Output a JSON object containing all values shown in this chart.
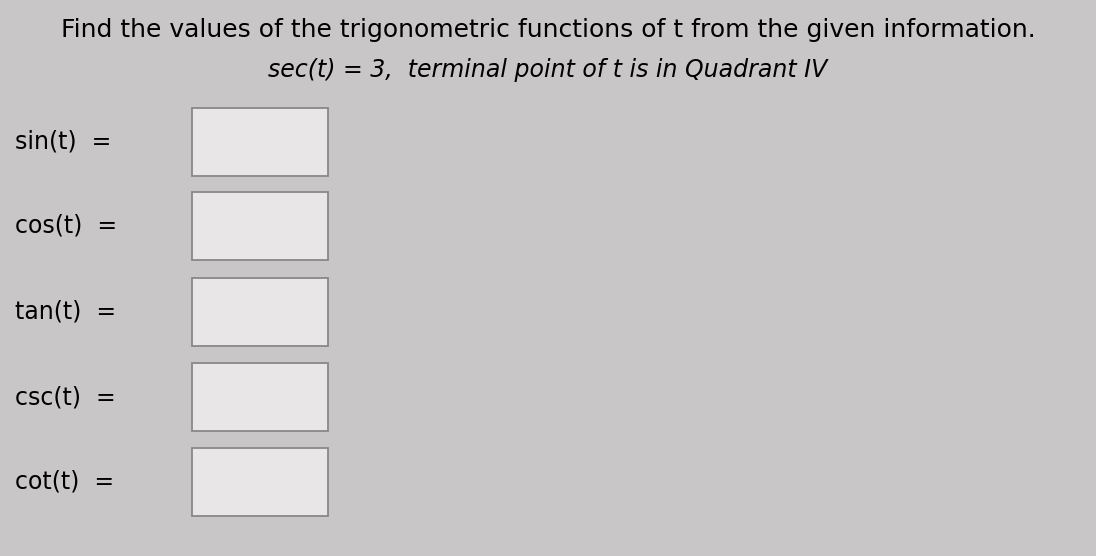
{
  "title": "Find the values of the trigonometric functions of t from the given information.",
  "subtitle": "sec(t) = 3,  terminal point of t is in Quadrant IV",
  "labels": [
    "sin(t)  =",
    "cos(t)  =",
    "tan(t)  =",
    "csc(t)  =",
    "cot(t)  ="
  ],
  "bg_color": "#c8c6c7",
  "box_color": "#e8e6e7",
  "box_edge_color": "#888888",
  "title_fontsize": 18,
  "subtitle_fontsize": 17,
  "label_fontsize": 17
}
